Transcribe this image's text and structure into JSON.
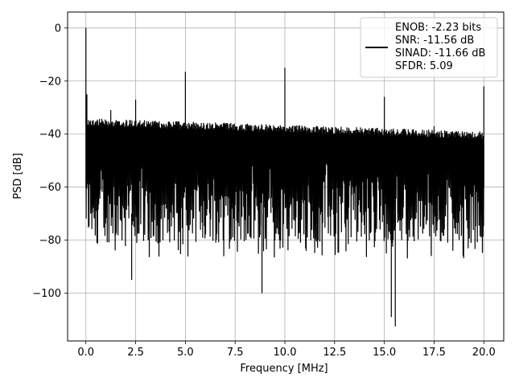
{
  "chart_data": {
    "type": "line",
    "title": "",
    "xlabel": "Frequency [MHz]",
    "ylabel": "PSD [dB]",
    "xlim": [
      -0.92,
      21.0
    ],
    "ylim": [
      -118,
      6
    ],
    "x_ticks": [
      0.0,
      2.5,
      5.0,
      7.5,
      10.0,
      12.5,
      15.0,
      17.5,
      20.0
    ],
    "x_tick_labels": [
      "0.0",
      "2.5",
      "5.0",
      "7.5",
      "10.0",
      "12.5",
      "15.0",
      "17.5",
      "20.0"
    ],
    "y_ticks": [
      0,
      -20,
      -40,
      -60,
      -80,
      -100
    ],
    "y_tick_labels": [
      "0",
      "−20",
      "−40",
      "−60",
      "−80",
      "−100"
    ],
    "grid": true,
    "legend_position": "upper right",
    "series": [
      {
        "name": "ENOB: -2.23 bits\nSNR: -11.56 dB\nSINAD: -11.66 dB\nSFDR: 5.09",
        "color": "#000000",
        "noise_floor_top_start": -34,
        "noise_floor_top_end": -39,
        "noise_floor_bottom": -79,
        "x_range": [
          0.0,
          20.0
        ]
      }
    ],
    "peaks": [
      {
        "x": 0.0,
        "y": 0
      },
      {
        "x": 0.05,
        "y": -25
      },
      {
        "x": 1.25,
        "y": -31
      },
      {
        "x": 2.5,
        "y": -27
      },
      {
        "x": 5.0,
        "y": -16.5
      },
      {
        "x": 10.0,
        "y": -15
      },
      {
        "x": 15.0,
        "y": -26
      },
      {
        "x": 17.5,
        "y": -37
      },
      {
        "x": 20.0,
        "y": -22
      }
    ],
    "dips": [
      {
        "x": 2.3,
        "y": -95
      },
      {
        "x": 8.85,
        "y": -100
      },
      {
        "x": 15.35,
        "y": -109
      },
      {
        "x": 15.55,
        "y": -112.5
      }
    ]
  },
  "legend": {
    "lines": [
      "ENOB: -2.23 bits",
      "SNR: -11.56 dB",
      "SINAD: -11.66 dB",
      "SFDR: 5.09"
    ]
  }
}
